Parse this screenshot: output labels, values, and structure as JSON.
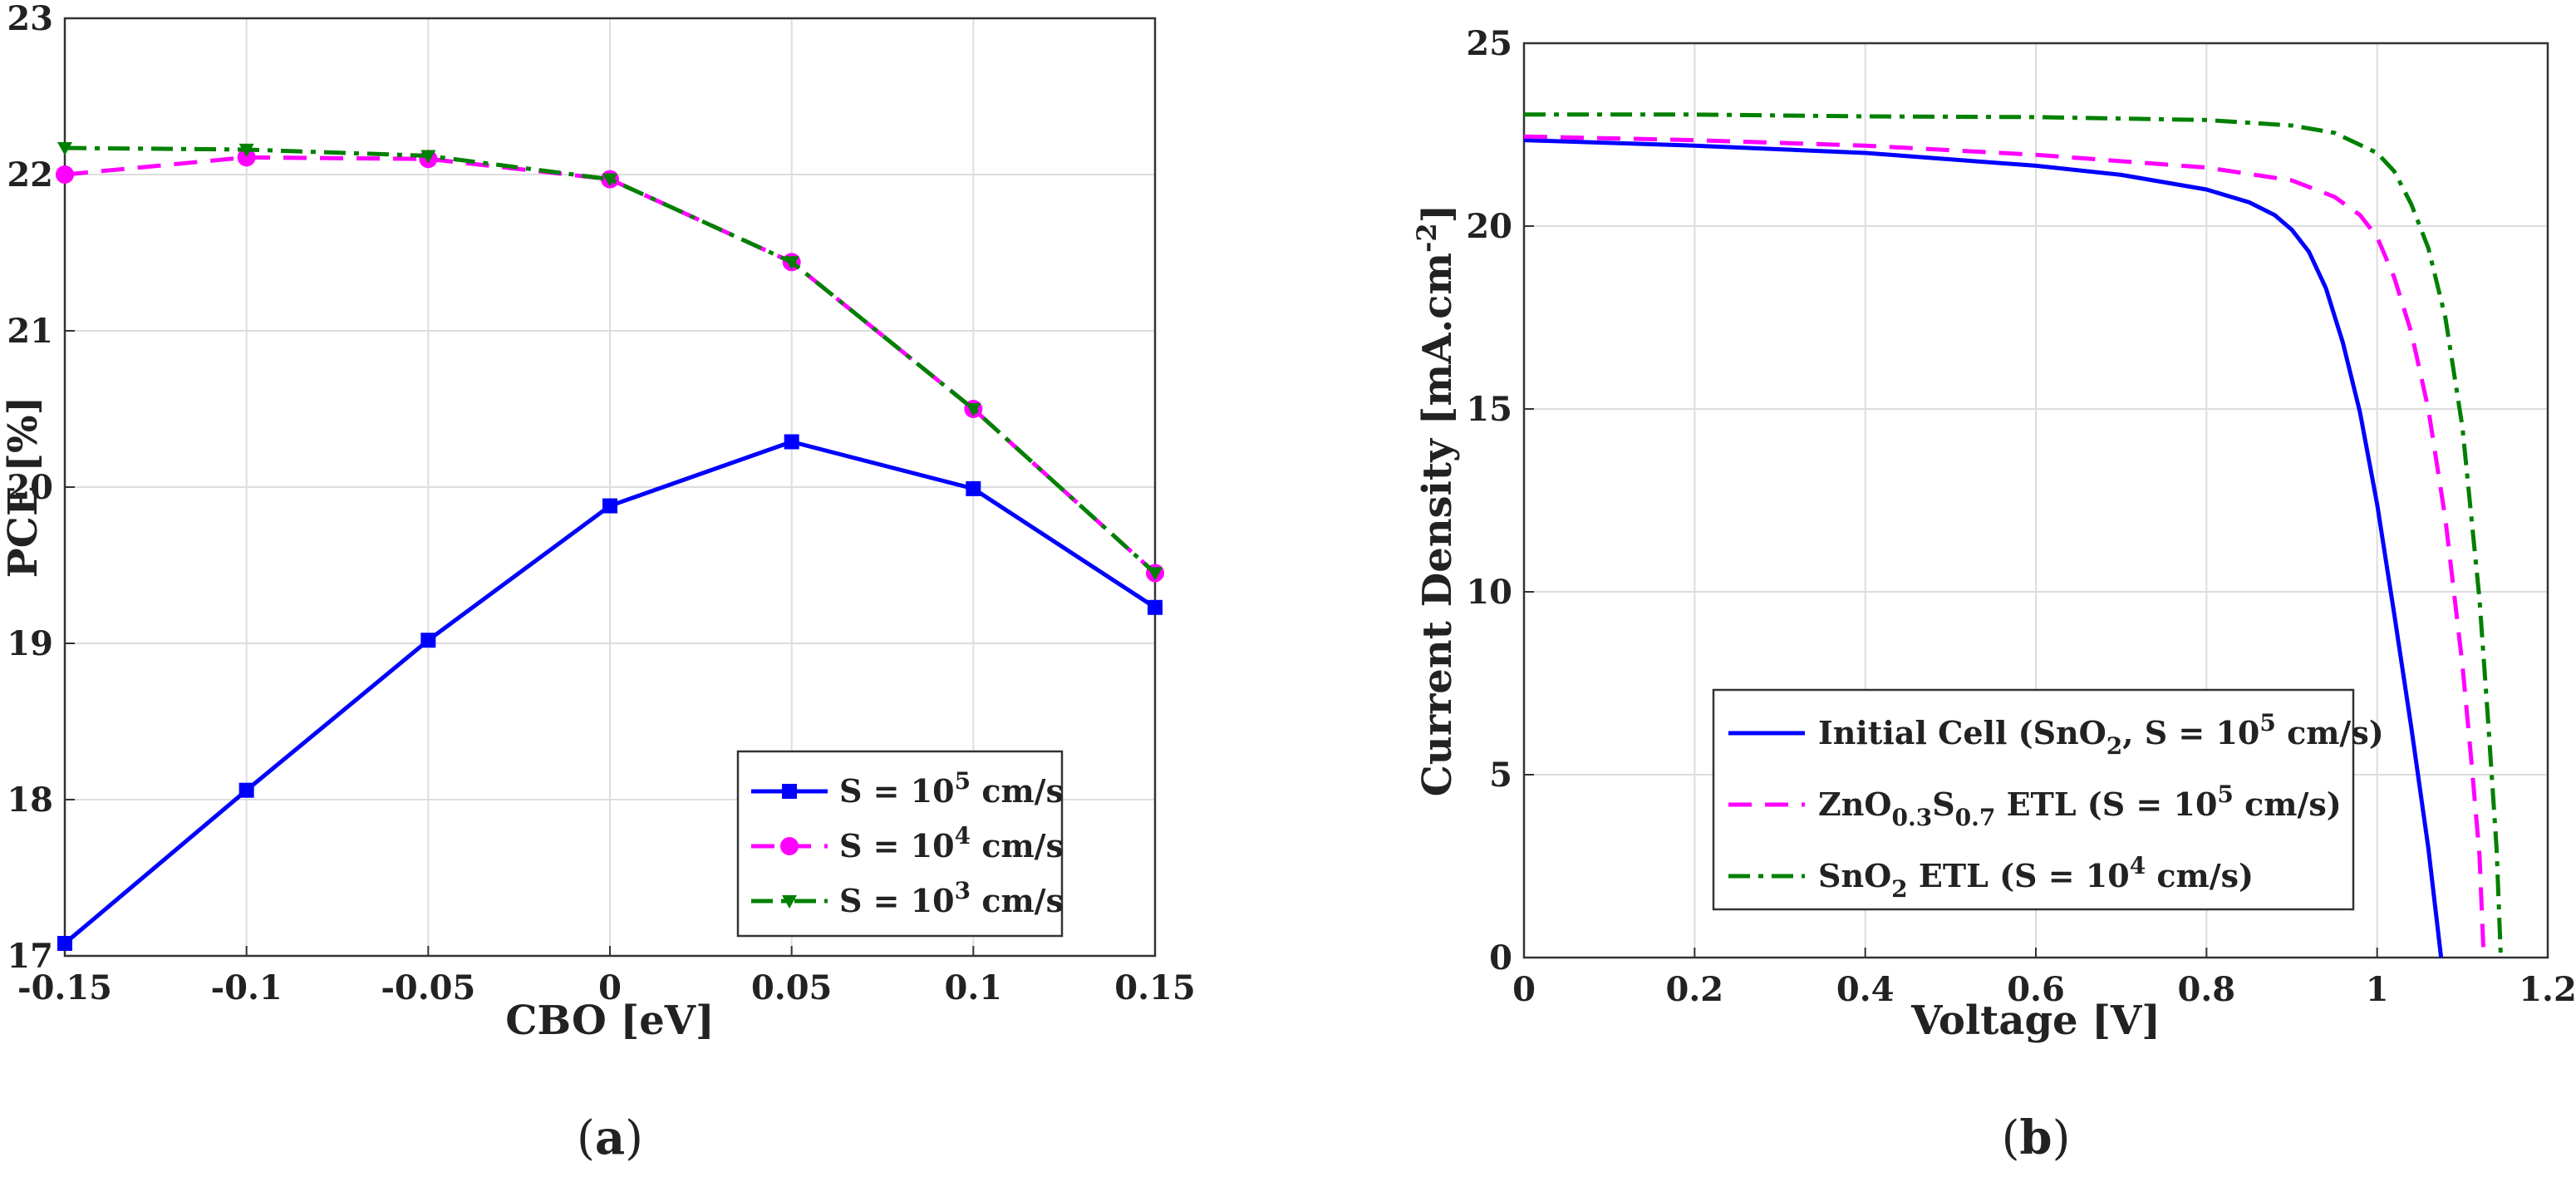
{
  "chart_data": [
    {
      "panel": "a",
      "type": "line",
      "caption_left": "(",
      "caption_letter": "a",
      "caption_right": ")",
      "xlabel": "CBO [eV]",
      "ylabel": "PCE [%]",
      "xlim": [
        -0.15,
        0.15
      ],
      "ylim": [
        17,
        23
      ],
      "xticks": [
        -0.15,
        -0.1,
        -0.05,
        0,
        0.05,
        0.1,
        0.15
      ],
      "xtick_labels": [
        "-0.15",
        "-0.1",
        "-0.05",
        "0",
        "0.05",
        "0.1",
        "0.15"
      ],
      "yticks": [
        17,
        18,
        19,
        20,
        21,
        22,
        23
      ],
      "ytick_labels": [
        "17",
        "18",
        "19",
        "20",
        "21",
        "22",
        "23"
      ],
      "grid": true,
      "legend_position": "bottom-right",
      "x": [
        -0.15,
        -0.1,
        -0.05,
        0,
        0.05,
        0.1,
        0.15
      ],
      "series": [
        {
          "name": "S = 10^5 cm/s",
          "label_pre": "S = 10",
          "label_sup": "5",
          "label_post": " cm/s",
          "color": "#0000ff",
          "dash": "solid",
          "marker": "square",
          "values": [
            17.08,
            18.06,
            19.02,
            19.88,
            20.29,
            19.99,
            19.23
          ]
        },
        {
          "name": "S = 10^4 cm/s",
          "label_pre": "S = 10",
          "label_sup": "4",
          "label_post": " cm/s",
          "color": "#ff00ff",
          "dash": "dashed",
          "marker": "circle",
          "values": [
            22.0,
            22.11,
            22.1,
            21.97,
            21.44,
            20.5,
            19.45
          ]
        },
        {
          "name": "S = 10^3 cm/s",
          "label_pre": "S = 10",
          "label_sup": "3",
          "label_post": " cm/s",
          "color": "#008000",
          "dash": "dashdot",
          "marker": "triangle",
          "values": [
            22.17,
            22.16,
            22.12,
            21.97,
            21.44,
            20.5,
            19.45
          ]
        }
      ]
    },
    {
      "panel": "b",
      "type": "line",
      "caption_left": "(",
      "caption_letter": "b",
      "caption_right": ")",
      "xlabel": "Voltage [V]",
      "ylabel_pre": "Current Density [mA.cm",
      "ylabel_sup": "-2",
      "ylabel_post": "]",
      "xlim": [
        0,
        1.2
      ],
      "ylim": [
        0,
        25
      ],
      "xticks": [
        0,
        0.2,
        0.4,
        0.6,
        0.8,
        1,
        1.2
      ],
      "xtick_labels": [
        "0",
        "0.2",
        "0.4",
        "0.6",
        "0.8",
        "1",
        "1.2"
      ],
      "yticks": [
        0,
        5,
        10,
        15,
        20,
        25
      ],
      "ytick_labels": [
        "0",
        "5",
        "10",
        "15",
        "20",
        "25"
      ],
      "grid": true,
      "legend_position": "bottom-left",
      "series": [
        {
          "name": "Initial Cell (SnO2, S = 10^5 cm/s)",
          "color": "#0000ff",
          "dash": "solid",
          "label_parts": [
            [
              "n",
              "Initial Cell (SnO"
            ],
            [
              "sub",
              "2"
            ],
            [
              "n",
              ", S = 10"
            ],
            [
              "sup",
              "5"
            ],
            [
              "n",
              " cm/s)"
            ]
          ],
          "points": [
            [
              0,
              22.35
            ],
            [
              0.2,
              22.2
            ],
            [
              0.4,
              22.0
            ],
            [
              0.6,
              21.65
            ],
            [
              0.7,
              21.4
            ],
            [
              0.8,
              21.0
            ],
            [
              0.85,
              20.65
            ],
            [
              0.88,
              20.3
            ],
            [
              0.9,
              19.9
            ],
            [
              0.92,
              19.3
            ],
            [
              0.94,
              18.3
            ],
            [
              0.96,
              16.8
            ],
            [
              0.98,
              14.9
            ],
            [
              1.0,
              12.4
            ],
            [
              1.02,
              9.4
            ],
            [
              1.04,
              6.3
            ],
            [
              1.06,
              3.0
            ],
            [
              1.075,
              0
            ]
          ]
        },
        {
          "name": "ZnO0.3S0.7 ETL (S = 10^5 cm/s)",
          "color": "#ff00ff",
          "dash": "dashed",
          "label_parts": [
            [
              "n",
              "ZnO"
            ],
            [
              "sub",
              "0.3"
            ],
            [
              "n",
              "S"
            ],
            [
              "sub",
              "0.7"
            ],
            [
              "n",
              " ETL (S = 10"
            ],
            [
              "sup",
              "5"
            ],
            [
              "n",
              " cm/s)"
            ]
          ],
          "points": [
            [
              0,
              22.45
            ],
            [
              0.2,
              22.35
            ],
            [
              0.4,
              22.2
            ],
            [
              0.6,
              21.95
            ],
            [
              0.8,
              21.6
            ],
            [
              0.9,
              21.25
            ],
            [
              0.95,
              20.8
            ],
            [
              0.98,
              20.3
            ],
            [
              1.0,
              19.7
            ],
            [
              1.02,
              18.6
            ],
            [
              1.04,
              17.1
            ],
            [
              1.06,
              15.0
            ],
            [
              1.08,
              12.0
            ],
            [
              1.1,
              8.0
            ],
            [
              1.11,
              5.5
            ],
            [
              1.12,
              2.8
            ],
            [
              1.125,
              0
            ]
          ]
        },
        {
          "name": "SnO2 ETL (S = 10^4 cm/s)",
          "color": "#008000",
          "dash": "dashdot",
          "label_parts": [
            [
              "n",
              "SnO"
            ],
            [
              "sub",
              "2"
            ],
            [
              "n",
              " ETL (S = 10"
            ],
            [
              "sup",
              "4"
            ],
            [
              "n",
              " cm/s)"
            ]
          ],
          "points": [
            [
              0,
              23.05
            ],
            [
              0.2,
              23.05
            ],
            [
              0.4,
              23.0
            ],
            [
              0.6,
              22.98
            ],
            [
              0.8,
              22.9
            ],
            [
              0.9,
              22.75
            ],
            [
              0.95,
              22.55
            ],
            [
              1.0,
              22.0
            ],
            [
              1.02,
              21.5
            ],
            [
              1.04,
              20.6
            ],
            [
              1.06,
              19.4
            ],
            [
              1.08,
              17.5
            ],
            [
              1.1,
              14.5
            ],
            [
              1.12,
              9.8
            ],
            [
              1.13,
              6.5
            ],
            [
              1.14,
              3.0
            ],
            [
              1.145,
              0
            ]
          ]
        }
      ]
    }
  ]
}
